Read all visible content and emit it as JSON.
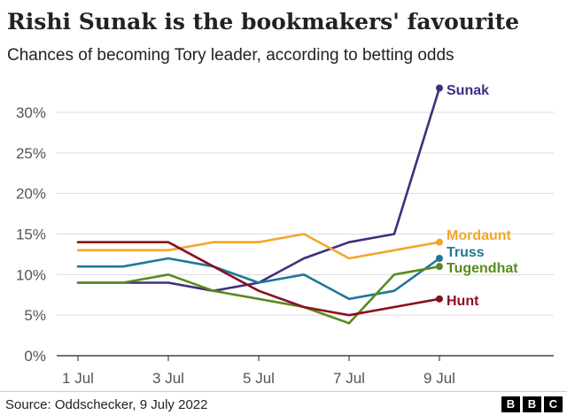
{
  "header": {
    "title": "Rishi Sunak is the bookmakers' favourite",
    "subtitle": "Chances of becoming Tory leader, according to betting odds"
  },
  "footer": {
    "source": "Source: Oddschecker, 9 July 2022",
    "logo_letters": [
      "B",
      "B",
      "C"
    ]
  },
  "chart_data": {
    "type": "line",
    "title": "Rishi Sunak is the bookmakers' favourite",
    "subtitle": "Chances of becoming Tory leader, according to betting odds",
    "x": [
      "1 Jul",
      "2 Jul",
      "3 Jul",
      "4 Jul",
      "5 Jul",
      "6 Jul",
      "7 Jul",
      "8 Jul",
      "9 Jul"
    ],
    "x_tick_labels": [
      "1 Jul",
      "3 Jul",
      "5 Jul",
      "7 Jul",
      "9 Jul"
    ],
    "y_ticks": [
      0,
      5,
      10,
      15,
      20,
      25,
      30
    ],
    "y_tick_labels": [
      "0%",
      "5%",
      "10%",
      "15%",
      "20%",
      "25%",
      "30%"
    ],
    "ylim": [
      0,
      30
    ],
    "grid": true,
    "legend": "direct labels at line ends",
    "series": [
      {
        "name": "Sunak",
        "color": "#3f2f7e",
        "values": [
          9,
          9,
          9,
          8,
          9,
          12,
          14,
          15,
          33
        ]
      },
      {
        "name": "Mordaunt",
        "color": "#f2a72c",
        "values": [
          13,
          13,
          13,
          14,
          14,
          15,
          12,
          13,
          14
        ]
      },
      {
        "name": "Truss",
        "color": "#1f7898",
        "values": [
          11,
          11,
          12,
          11,
          9,
          10,
          7,
          8,
          12
        ]
      },
      {
        "name": "Tugendhat",
        "color": "#588b1f",
        "values": [
          9,
          9,
          10,
          8,
          7,
          6,
          4,
          10,
          11
        ]
      },
      {
        "name": "Hunt",
        "color": "#8a0f1e",
        "values": [
          14,
          14,
          14,
          11,
          8,
          6,
          5,
          6,
          7
        ]
      }
    ]
  }
}
